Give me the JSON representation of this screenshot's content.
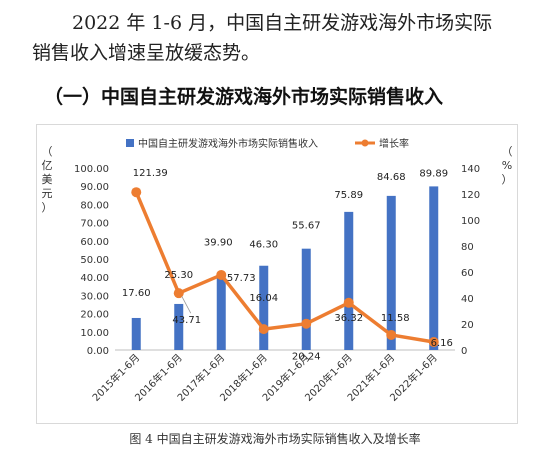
{
  "article": {
    "paragraph_line1": "2022 年 1-6 月，中国自主研发游戏海外市场实际",
    "paragraph_line2": "销售收入增速呈放缓态势。",
    "heading": "（一）中国自主研发游戏海外市场实际销售收入",
    "caption": "图 4  中国自主研发游戏海外市场实际销售收入及增长率"
  },
  "chart_data": {
    "type": "bar",
    "categories": [
      "2015年1-6月",
      "2016年1-6月",
      "2017年1-6月",
      "2018年1-6月",
      "2019年1-6月",
      "2020年1-6月",
      "2021年1-6月",
      "2022年1-6月"
    ],
    "series": [
      {
        "name": "中国自主研发游戏海外市场实际销售收入",
        "type": "bar",
        "axis": "left",
        "color": "#4472c4",
        "values": [
          17.6,
          25.3,
          39.9,
          46.3,
          55.67,
          75.89,
          84.68,
          89.89
        ],
        "labels": [
          "17.60",
          "25.30",
          "39.90",
          "46.30",
          "55.67",
          "75.89",
          "84.68",
          "89.89"
        ]
      },
      {
        "name": "增长率",
        "type": "line",
        "axis": "right",
        "color": "#ed7d31",
        "values": [
          121.39,
          43.71,
          57.73,
          16.04,
          20.24,
          36.32,
          11.58,
          6.16
        ],
        "labels": [
          "121.39",
          "43.71",
          "57.73",
          "16.04",
          "20.24",
          "36.32",
          "11.58",
          "6.16"
        ]
      }
    ],
    "left_axis": {
      "label": "（亿美元）",
      "ylim": [
        0,
        100
      ],
      "ticks": [
        "0.00",
        "10.00",
        "20.00",
        "30.00",
        "40.00",
        "50.00",
        "60.00",
        "70.00",
        "80.00",
        "90.00",
        "100.00"
      ]
    },
    "right_axis": {
      "label": "（%）",
      "ylim": [
        0,
        140
      ],
      "ticks": [
        "0",
        "20",
        "40",
        "60",
        "80",
        "100",
        "120",
        "140"
      ]
    },
    "legend": "top-center",
    "grid": false
  }
}
